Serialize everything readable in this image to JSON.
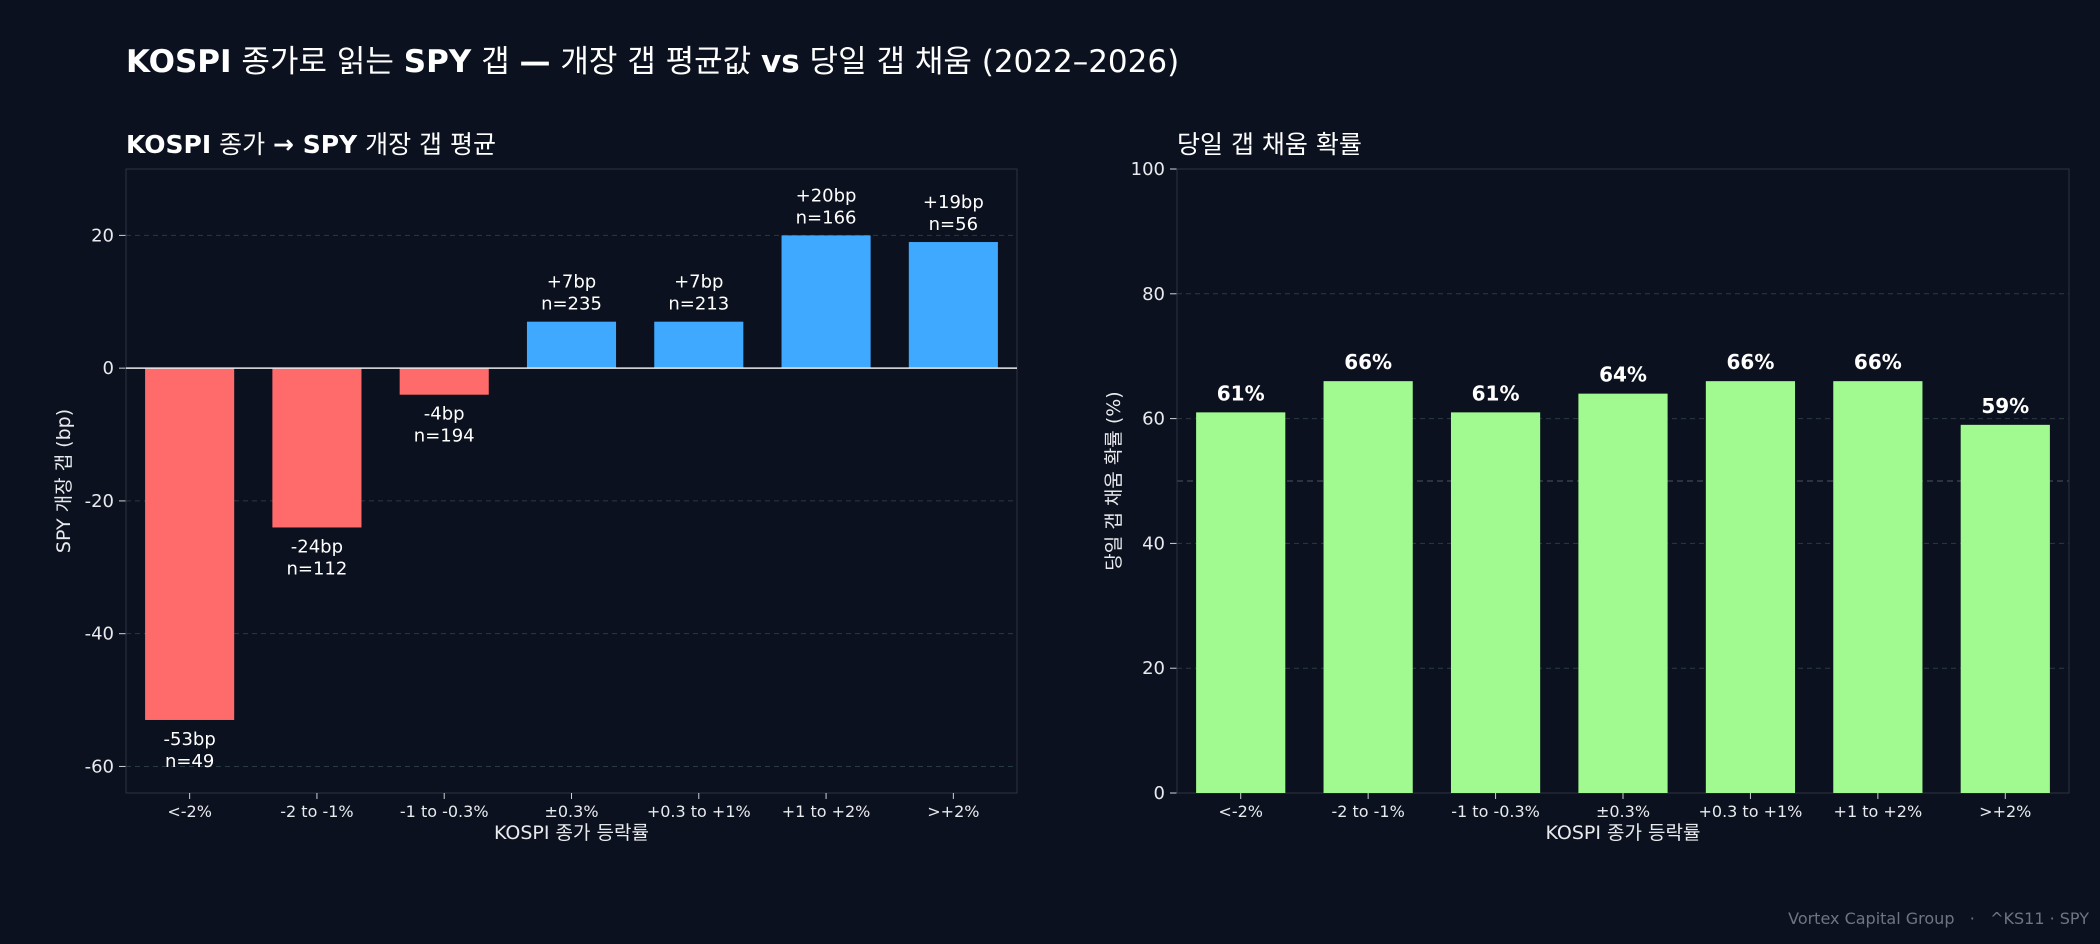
{
  "title": {
    "part1": "KOSPI",
    "part2": " 종가로 읽는 ",
    "part3": "SPY",
    "part4": " 갭 ",
    "part5": "—",
    "part6": " 개장 갭 평균값 ",
    "part7": "vs",
    "part8": " 당일 갭 채움 (2022–2026)"
  },
  "footer": {
    "brand": "Vortex Capital Group",
    "separator": "·",
    "tickers": "^KS11 · SPY"
  },
  "colors": {
    "background": "#0b111e",
    "negative": "#ff6b6b",
    "positive": "#3fa8ff",
    "fill": "#a1fa8f",
    "grid": "#2a3a44",
    "text": "#ffffff"
  },
  "chart_data": [
    {
      "type": "bar",
      "title_parts": [
        {
          "text": "KOSPI",
          "bold": true
        },
        {
          "text": " 종가 ",
          "bold": false
        },
        {
          "text": "→ SPY",
          "bold": true
        },
        {
          "text": " 개장 갭 평균",
          "bold": false
        }
      ],
      "xlabel": "KOSPI 종가 등락률",
      "ylabel": "SPY 개장 갭 (bp)",
      "ylim": [
        -64,
        30
      ],
      "yticks": [
        -60,
        -40,
        -20,
        0,
        20
      ],
      "grid": true,
      "categories": [
        "<-2%",
        "-2 to -1%",
        "-1 to -0.3%",
        "±0.3%",
        "+0.3 to +1%",
        "+1 to +2%",
        ">+2%"
      ],
      "values": [
        -53,
        -24,
        -4,
        7,
        7,
        20,
        19
      ],
      "value_labels": [
        "-53bp",
        "-24bp",
        "-4bp",
        "+7bp",
        "+7bp",
        "+20bp",
        "+19bp"
      ],
      "count_labels": [
        "n=49",
        "n=112",
        "n=194",
        "n=235",
        "n=213",
        "n=166",
        "n=56"
      ]
    },
    {
      "type": "bar",
      "title_parts": [
        {
          "text": "당일 갭 채움 확률",
          "bold": false
        }
      ],
      "xlabel": "KOSPI 종가 등락률",
      "ylabel": "당일 갭 채움 확률 (%)",
      "ylim": [
        0,
        100
      ],
      "yticks": [
        0,
        20,
        40,
        60,
        80,
        100
      ],
      "grid": true,
      "reference_line": 50,
      "categories": [
        "<-2%",
        "-2 to -1%",
        "-1 to -0.3%",
        "±0.3%",
        "+0.3 to +1%",
        "+1 to +2%",
        ">+2%"
      ],
      "values": [
        61,
        66,
        61,
        64,
        66,
        66,
        59
      ],
      "value_labels": [
        "61%",
        "66%",
        "61%",
        "64%",
        "66%",
        "66%",
        "59%"
      ]
    }
  ]
}
